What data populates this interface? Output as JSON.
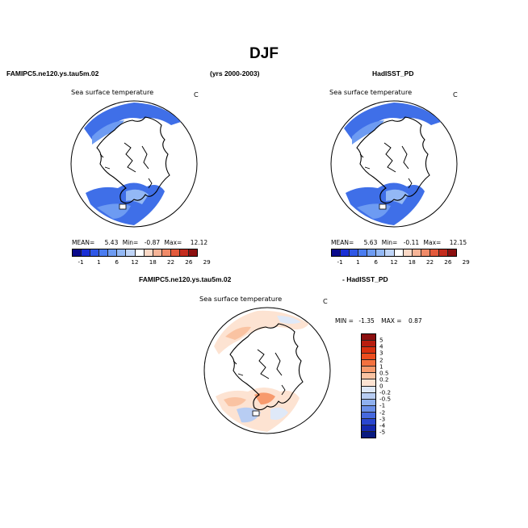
{
  "title": "DJF",
  "header": {
    "left_case": "FAMIPC5.ne120.ys.tau5m.02",
    "years": "(yrs 2000-2003)",
    "right_obs": "HadISST_PD",
    "diff_case": "FAMIPC5.ne120.ys.tau5m.02",
    "diff_obs": "- HadISST_PD"
  },
  "panels": [
    {
      "id": "model",
      "title": "Sea surface temperature",
      "units": "C",
      "mean_label": "MEAN=",
      "mean": "5.43",
      "min_label": "Min=",
      "min": "-0.87",
      "max_label": "Max=",
      "max": "12.12"
    },
    {
      "id": "obs",
      "title": "Sea surface temperature",
      "units": "C",
      "mean_label": "MEAN=",
      "mean": "5.63",
      "min_label": "Min=",
      "min": "-0.11",
      "max_label": "Max=",
      "max": "12.15"
    },
    {
      "id": "diff",
      "title": "Sea surface temperature",
      "units": "C",
      "min_label": "MIN =",
      "min": "-1.35",
      "max_label": "MAX =",
      "max": "0.87"
    }
  ],
  "colorbar_abs": {
    "colors": [
      "#0a0a8c",
      "#1a2fd4",
      "#2f57e6",
      "#4a7cf0",
      "#6d9bf2",
      "#93b8f5",
      "#c0d5f8",
      "#ffffff",
      "#fcd9c6",
      "#f7b497",
      "#f08a68",
      "#e35a3c",
      "#c42c1d",
      "#8c0f0f"
    ],
    "labels": [
      "-1",
      "1",
      "6",
      "12",
      "18",
      "22",
      "26",
      "29"
    ]
  },
  "colorbar_diff": {
    "colors": [
      "#8c0f0f",
      "#b81d0f",
      "#d9300f",
      "#ec4d1f",
      "#f3713f",
      "#f79a6d",
      "#fac3a2",
      "#fde3d2",
      "#dfe9f8",
      "#b8cdf3",
      "#8fb0ee",
      "#6a8fe8",
      "#4669df",
      "#2a46cf",
      "#1428ae",
      "#081a80"
    ],
    "labels": [
      "5",
      "4",
      "3",
      "2",
      "1",
      "0.5",
      "0.2",
      "0",
      "-0.2",
      "-0.5",
      "-1",
      "-2",
      "-3",
      "-4",
      "-5"
    ]
  },
  "icons": {
    "map": "polar-map-icon"
  }
}
